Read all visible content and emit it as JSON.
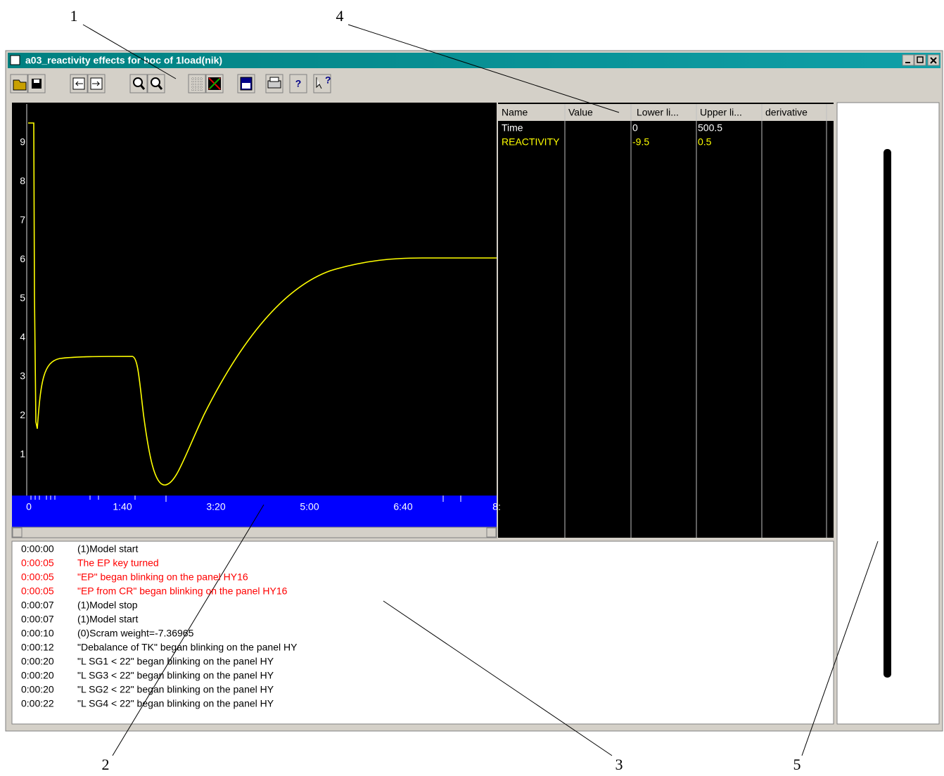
{
  "callouts": [
    1,
    4,
    2,
    3,
    5
  ],
  "window": {
    "title": "a03_reactivity effects for boc of 1load(nik)"
  },
  "plot": {
    "y_labels": [
      9,
      8,
      7,
      6,
      5,
      4,
      3,
      2,
      1
    ],
    "x_labels": [
      "0",
      "1:40",
      "3:20",
      "5:00",
      "6:40",
      "8:"
    ]
  },
  "table": {
    "headers": [
      "Name",
      "Value",
      "Lower li...",
      "Upper li...",
      "derivative"
    ],
    "rows": [
      {
        "name": "Time",
        "lower": 0,
        "upper": 500.5,
        "color": "#ffffff"
      },
      {
        "name": "REACTIVITY",
        "lower": -9.5,
        "upper": 0.5,
        "color": "#ffff00"
      }
    ]
  },
  "log": [
    {
      "time": "0:00:00",
      "text": "(1)Model start",
      "alert": false
    },
    {
      "time": "0:00:05",
      "text": "The EP key turned",
      "alert": true
    },
    {
      "time": "0:00:05",
      "text": "\"EP\" began blinking on the panel HY16",
      "alert": true
    },
    {
      "time": "0:00:05",
      "text": "\"EP from CR\" began blinking on the panel HY16",
      "alert": true
    },
    {
      "time": "0:00:07",
      "text": "(1)Model stop",
      "alert": false
    },
    {
      "time": "0:00:07",
      "text": "(1)Model start",
      "alert": false
    },
    {
      "time": "0:00:10",
      "text": "(0)Scram weight=-7.36965",
      "alert": false
    },
    {
      "time": "0:00:12",
      "text": "\"Debalance of TK\" began blinking on the panel HY",
      "alert": false
    },
    {
      "time": "0:00:20",
      "text": "\"L SG1 < 22\" began blinking on the panel HY",
      "alert": false
    },
    {
      "time": "0:00:20",
      "text": "\"L SG3 < 22\" began blinking on the panel HY",
      "alert": false
    },
    {
      "time": "0:00:20",
      "text": "\"L SG2 < 22\" began blinking on the panel HY",
      "alert": false
    },
    {
      "time": "0:00:22",
      "text": "\"L SG4 < 22\" began blinking on the panel HY",
      "alert": false
    }
  ]
}
